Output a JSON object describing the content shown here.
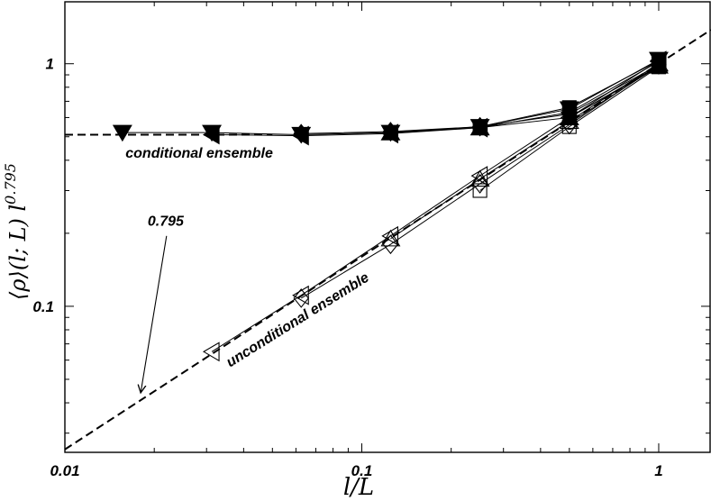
{
  "chart_data": {
    "type": "scatter",
    "title": "",
    "xscale": "log",
    "yscale": "log",
    "xlim": [
      0.01,
      1.5
    ],
    "ylim": [
      0.025,
      1.8
    ],
    "xlabel": {
      "base": "l/L"
    },
    "ylabel": {
      "base": "⟨ρ⟩(l; L) l",
      "exponent": "0.795"
    },
    "xticks": [
      {
        "value": 0.01,
        "label": "0.01"
      },
      {
        "value": 0.1,
        "label": "0.1"
      },
      {
        "value": 1,
        "label": "1"
      }
    ],
    "yticks": [
      {
        "value": 0.1,
        "label": "0.1"
      },
      {
        "value": 1,
        "label": "1"
      }
    ],
    "grid": false,
    "reference_lines": [
      {
        "kind": "horizontal",
        "y": 0.51,
        "style": "dashed"
      },
      {
        "kind": "power_law",
        "exponent": 0.795,
        "x_from": 0.01,
        "x_to": 1.5,
        "y_at_1": 1.0,
        "style": "dashed"
      }
    ],
    "series": [
      {
        "group": "conditional",
        "marker": "filled-down-triangle",
        "points": [
          [
            0.015625,
            0.52
          ],
          [
            0.03125,
            0.52
          ],
          [
            0.0625,
            0.51
          ],
          [
            0.125,
            0.52
          ],
          [
            0.25,
            0.55
          ],
          [
            0.5,
            0.65
          ],
          [
            1,
            1.04
          ]
        ]
      },
      {
        "group": "conditional",
        "marker": "filled-left-triangle",
        "points": [
          [
            0.03125,
            0.51
          ],
          [
            0.0625,
            0.505
          ],
          [
            0.125,
            0.515
          ],
          [
            0.25,
            0.545
          ],
          [
            0.5,
            0.63
          ],
          [
            1,
            1.02
          ]
        ]
      },
      {
        "group": "conditional",
        "marker": "filled-diamond",
        "points": [
          [
            0.0625,
            0.515
          ],
          [
            0.125,
            0.525
          ],
          [
            0.25,
            0.55
          ],
          [
            0.5,
            0.62
          ],
          [
            1,
            0.99
          ]
        ]
      },
      {
        "group": "conditional",
        "marker": "filled-up-triangle",
        "points": [
          [
            0.125,
            0.52
          ],
          [
            0.25,
            0.545
          ],
          [
            0.5,
            0.6
          ],
          [
            1,
            0.98
          ]
        ]
      },
      {
        "group": "conditional",
        "marker": "filled-square",
        "points": [
          [
            0.25,
            0.55
          ],
          [
            0.5,
            0.66
          ],
          [
            1,
            1.03
          ]
        ]
      },
      {
        "group": "conditional",
        "marker": "filled-circle",
        "points": [
          [
            0.5,
            0.6
          ],
          [
            1,
            0.97
          ]
        ]
      },
      {
        "group": "unconditional",
        "marker": "open-left-triangle",
        "points": [
          [
            0.03125,
            0.065
          ],
          [
            0.0625,
            0.111
          ],
          [
            0.125,
            0.195
          ],
          [
            0.25,
            0.345
          ],
          [
            0.5,
            0.6
          ],
          [
            1,
            1.03
          ]
        ]
      },
      {
        "group": "unconditional",
        "marker": "open-diamond",
        "points": [
          [
            0.0625,
            0.108
          ],
          [
            0.125,
            0.18
          ],
          [
            0.25,
            0.32
          ],
          [
            0.5,
            0.56
          ],
          [
            1,
            0.99
          ]
        ]
      },
      {
        "group": "unconditional",
        "marker": "open-up-triangle",
        "points": [
          [
            0.125,
            0.19
          ],
          [
            0.25,
            0.335
          ],
          [
            0.5,
            0.58
          ],
          [
            1,
            1.0
          ]
        ]
      },
      {
        "group": "unconditional",
        "marker": "open-square",
        "points": [
          [
            0.25,
            0.3
          ],
          [
            0.5,
            0.55
          ],
          [
            1,
            0.97
          ]
        ]
      },
      {
        "group": "unconditional",
        "marker": "open-circle",
        "points": [
          [
            0.5,
            0.57
          ],
          [
            1,
            0.98
          ]
        ]
      }
    ],
    "annotations": [
      {
        "text": "conditional ensemble",
        "at": [
          0.016,
          0.41
        ],
        "rotation": 0
      },
      {
        "text": "unconditional ensemble",
        "at": [
          0.036,
          0.056
        ],
        "rotation": -32
      },
      {
        "text": "0.795",
        "at": [
          0.019,
          0.215
        ],
        "rotation": 0
      }
    ],
    "arrows": [
      {
        "from": [
          0.022,
          0.195
        ],
        "to": [
          0.018,
          0.044
        ]
      }
    ]
  }
}
